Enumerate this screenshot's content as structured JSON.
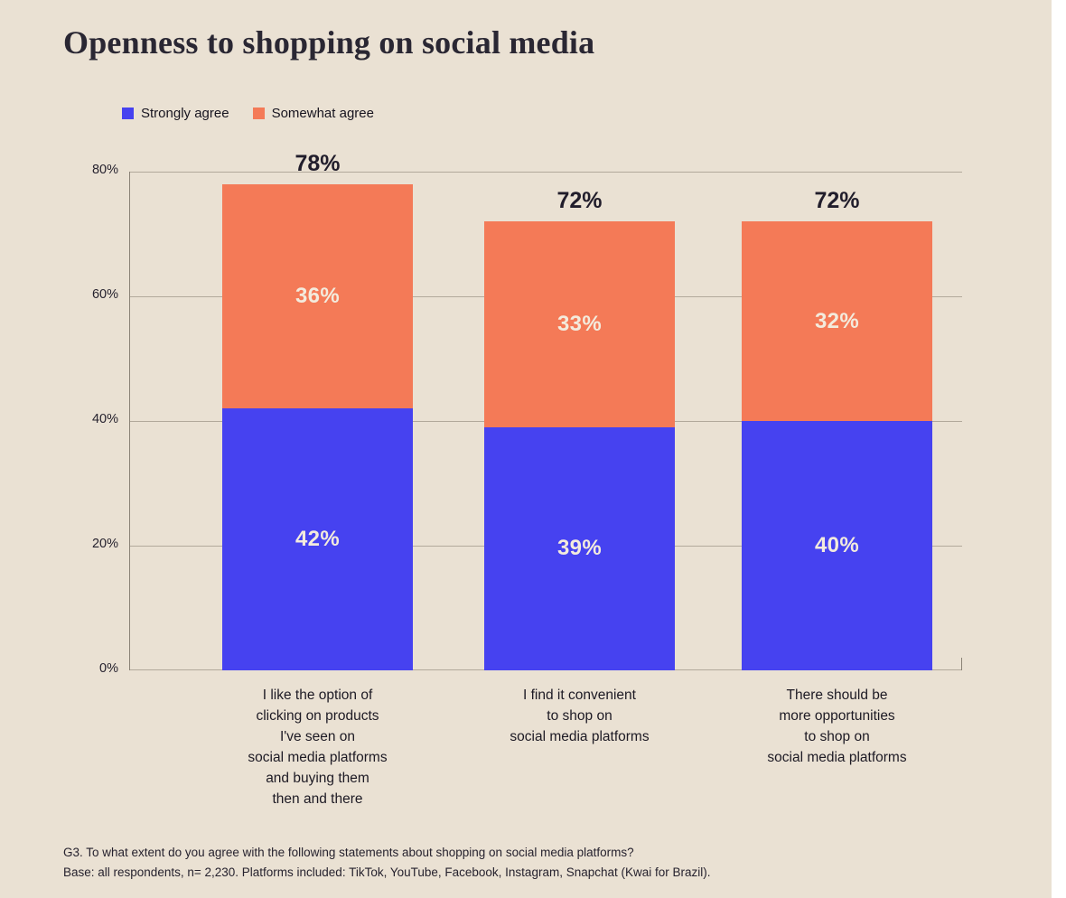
{
  "page": {
    "background_color": "#eae1d3",
    "right_strip_color": "#ffffff"
  },
  "chart_data": {
    "type": "stacked-bar",
    "title": "Openness to shopping on social media",
    "unit": "%",
    "categories": [
      "I like the option of\nclicking on products\nI've seen on\nsocial media platforms\nand buying them\nthen and there",
      "I find it convenient\nto shop on\nsocial media platforms",
      "There should be\nmore opportunities\nto shop on\nsocial media platforms"
    ],
    "series": [
      {
        "name": "Strongly agree",
        "color": "#4642f0",
        "values": [
          42,
          39,
          40
        ]
      },
      {
        "name": "Somewhat agree",
        "color": "#f47a57",
        "values": [
          36,
          33,
          32
        ]
      }
    ],
    "totals": [
      78,
      72,
      72
    ],
    "ylim": [
      0,
      80
    ],
    "yticks": [
      "0%",
      "20%",
      "40%",
      "60%",
      "80%"
    ],
    "grid": true,
    "legend_position": "top-left",
    "colors": {
      "grid": "#b2a99b",
      "axis": "#8a8276",
      "segment_label": "#f3ebdd",
      "text": "#26222e"
    }
  },
  "footnote": {
    "line1": "G3. To what extent do you agree with the following statements about shopping on social media platforms?",
    "line2": "Base: all respondents, n= 2,230. Platforms included: TikTok, YouTube, Facebook, Instagram, Snapchat (Kwai for Brazil)."
  }
}
